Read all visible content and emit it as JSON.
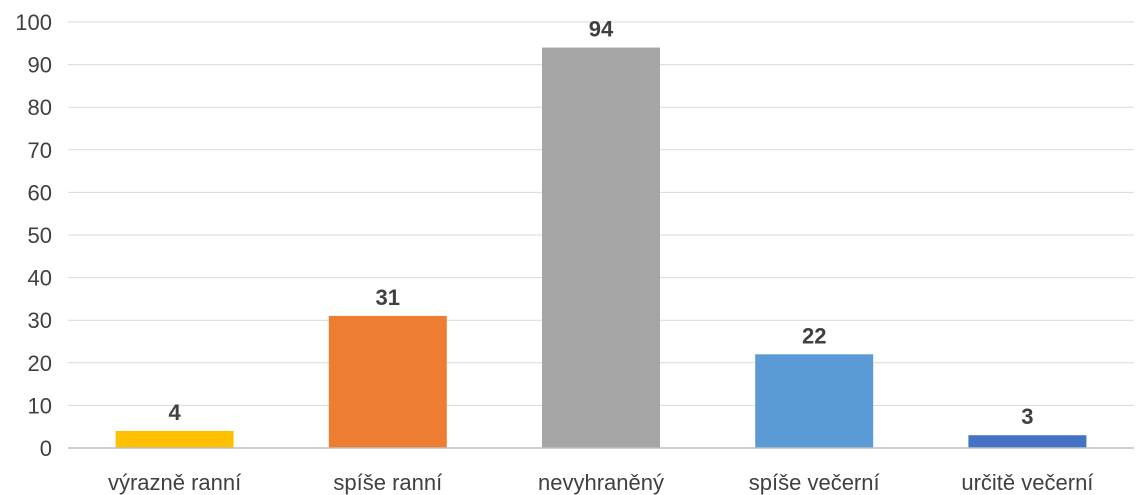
{
  "chart_data": {
    "type": "bar",
    "title": "",
    "xlabel": "",
    "ylabel": "",
    "categories": [
      "výrazně ranní",
      "spíše ranní",
      "nevyhraněný",
      "spíše večerní",
      "určitě večerní"
    ],
    "values": [
      4,
      31,
      94,
      22,
      3
    ],
    "colors": [
      "#FFC000",
      "#ED7D31",
      "#A5A5A5",
      "#5B9BD5",
      "#4472C4"
    ],
    "ylim": [
      0,
      100
    ],
    "yticks": [
      "0",
      "10",
      "20",
      "30",
      "40",
      "50",
      "60",
      "70",
      "80",
      "90",
      "100"
    ],
    "data_labels": [
      "4",
      "31",
      "94",
      "22",
      "3"
    ],
    "grid": true,
    "legend": "none"
  }
}
